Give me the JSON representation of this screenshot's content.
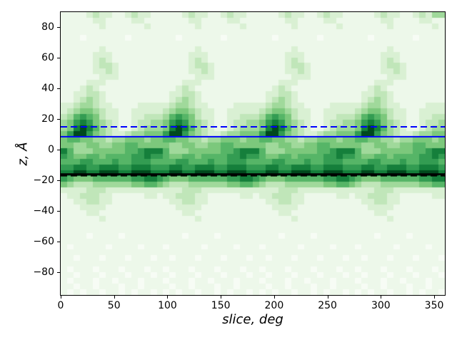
{
  "figure": {
    "background": "#ffffff"
  },
  "chart_data": {
    "type": "heatmap",
    "title": "",
    "xlabel": "slice, deg",
    "ylabel": "z, Å",
    "xlim": [
      0,
      360
    ],
    "ylim": [
      -95,
      90
    ],
    "x_ticks": [
      0,
      50,
      100,
      150,
      200,
      250,
      300,
      350
    ],
    "x_tick_labels": [
      "0",
      "50",
      "100",
      "150",
      "200",
      "250",
      "300",
      "350"
    ],
    "y_ticks": [
      80,
      60,
      40,
      20,
      0,
      -20,
      -40,
      -60,
      -80
    ],
    "y_tick_labels": [
      "80",
      "60",
      "40",
      "20",
      "0",
      "−20",
      "−40",
      "−60",
      "−80"
    ],
    "colormap": "Greens",
    "palette": [
      "#f7fcf5",
      "#edf8ea",
      "#d9f0d3",
      "#c0e6b9",
      "#a0d99b",
      "#7cc87c",
      "#56b567",
      "#339c52",
      "#157f3b",
      "#00491d"
    ],
    "grid_note": "intensity 0 (white) .. 9 (darkest green); 60 columns of 6 deg, 50 rows of 3.7 A from z=+90 (top) to z=-95 (bottom)",
    "grid": {
      "cols": 60,
      "rows": 50,
      "values": [
        "111123221123221111123221123221111123221123221111123221123244",
        "111112211112211111112211112211111112211112211111112211112211",
        "111111211111121111111211111121111111211111121111111211111121",
        "111111111111111111111111111111111111111111111111111111111111",
        "111011111101111111011111101111111011111101111111011111101111",
        "111111111111111111111111111111111111111111111111111111111111",
        "111111211111111111111211111111111111211111111111111211111111",
        "111112221111111111112221111111111112221111111111112221111111",
        "111112321111111111112321111111111112321111111111112321111111",
        "111112332111111111112332111111111112332111111111112332111111",
        "111112232111111111112232111111111112232111111111112232111111",
        "111111222111111111111222111111111111222111111111111222111111",
        "111122211111111111122211111111111122211111111111122211111111",
        "111232111111111111232111111111111232111111111111232111111111",
        "112233211111111112233211111111112233211111111112233211111111",
        "112343211111111112343211111111112343211111111112343211111111",
        "223443221111222223443221111222223443221111222223443221111222",
        "234554322112222234554322112222234554322112222234554322112222",
        "346765322112233346765322112233346765322112233346765322112233",
        "457875432112334457875432112334457875432112334457875432112334",
        "458986432112344458986432112344458986432112344458986432112344",
        "579975432234455579975432234455579975432234455579975432234455",
        "566554434455545566554434455545566554434455545566554434455545",
        "554455445566555554455445566555554455445566555554455445566555",
        "864445555566788864445555566788864445555566788864445555566788",
        "765566566667787765566566667787765566566667787765566566667787",
        "666776667667776666776667667776666776667667776666776667667776",
        "778877888778887778877888778887778877888778887778877888778887",
        "889988999889998889988999889998889988999889998889988999889998",
        "765556666667788765556666667788765556666667788765556666667788",
        "543334444445566543334444445566543334444445566543334444445566",
        "222233322222222222233322222222222233322222222222233322222222",
        "122333221111122122333221111122122333221111122122333221111122",
        "112233221111111112233221111111112233221111111112233221111111",
        "111222211111111111222211111111111222211111111111222211111111",
        "111122111111111111122111111111111122111111111111122111111111",
        "111111211111111111111211111111111111211111111111111211111111",
        "111111111111111111111111111111111111111111111111111111111111",
        "111111111111111111111111111111111111111111111111111111111111",
        "111101111011111111101111011111111101111011111111101111011111",
        "111111111111111111111111111111111111111111111111111111111111",
        "101111101111011101111101111011101111101111011101111101111011",
        "111111111111111111111111111111111111111111111111111111111111",
        "110111011101110110111011101110110111011101110110111011101110",
        "111111111111111111111111111111111111111111111111111111111111",
        "101110111011101101110111011101101110111011101101110111011101",
        "110111011101110110111011101110110111011101110110111011101110",
        "101110110111011101110110111011101110110111011101110110111011",
        "110110111011011110110111011011110110111011011110110111011011",
        "101011011010110101011011010110101011011010110101011011010110"
      ]
    },
    "ref_lines": [
      {
        "name": "upper-boundary-dashed",
        "z": 15,
        "color": "#0000ff",
        "style": "dashed",
        "width": 2
      },
      {
        "name": "upper-boundary-solid",
        "z": 8.5,
        "color": "#0000ff",
        "style": "solid",
        "width": 2
      },
      {
        "name": "lower-boundary-solid",
        "z": -16,
        "color": "#000000",
        "style": "solid",
        "width": 2.5
      },
      {
        "name": "lower-boundary-dashed",
        "z": -17,
        "color": "#000000",
        "style": "dashed",
        "width": 2
      }
    ],
    "legend": null,
    "grid_lines": "off"
  }
}
